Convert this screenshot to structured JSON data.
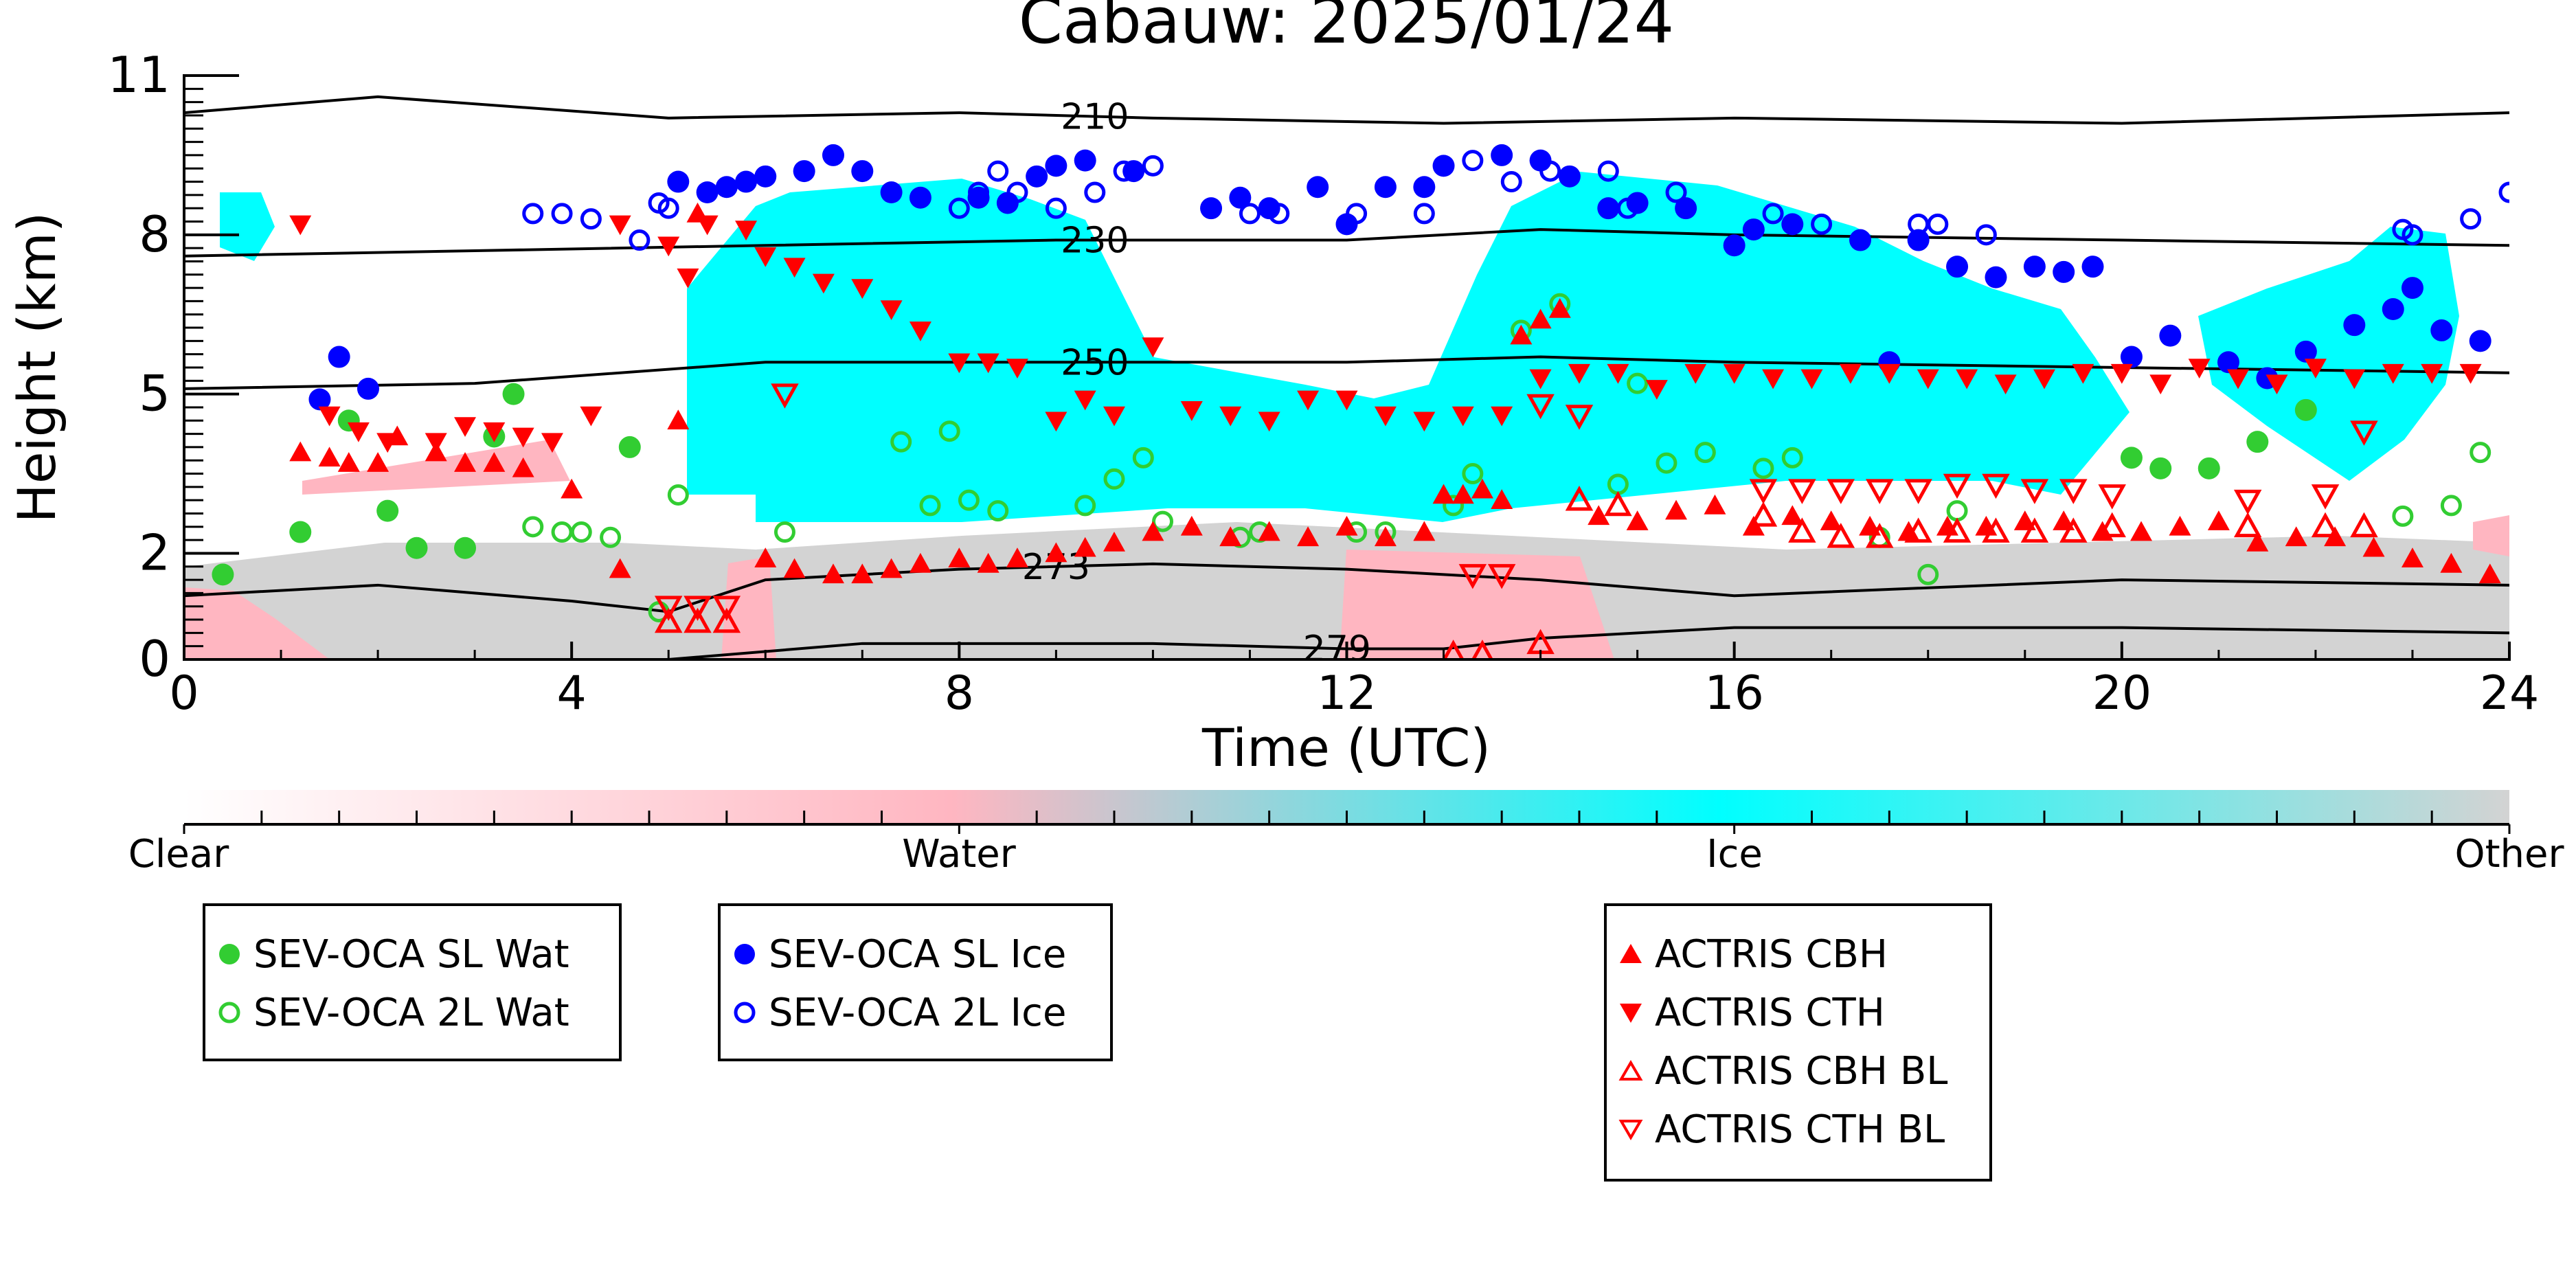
{
  "chart_data": {
    "type": "scatter",
    "title": "Cabauw: 2025/01/24",
    "xlabel": "Time (UTC)",
    "ylabel": "Height (km)",
    "xlim": [
      0,
      24
    ],
    "ylim": [
      0,
      11
    ],
    "xticks": [
      0,
      4,
      8,
      12,
      16,
      20,
      24
    ],
    "yticks": [
      0,
      2,
      5,
      8,
      11
    ],
    "ytick_labels": [
      "0",
      "2",
      "5",
      "8",
      "11"
    ],
    "colorbar": {
      "labels": [
        "Clear",
        "Water",
        "Ice",
        "Other"
      ],
      "colors": [
        "#ffffff",
        "#ffb6c1",
        "#00ffff",
        "#d3d3d3"
      ]
    },
    "isotherms": [
      {
        "label": "210",
        "label_x": 9.4,
        "points": [
          [
            0,
            10.3
          ],
          [
            2,
            10.6
          ],
          [
            5,
            10.2
          ],
          [
            8,
            10.3
          ],
          [
            10,
            10.2
          ],
          [
            13,
            10.1
          ],
          [
            16,
            10.2
          ],
          [
            20,
            10.1
          ],
          [
            24,
            10.3
          ]
        ]
      },
      {
        "label": "230",
        "label_x": 9.4,
        "points": [
          [
            0,
            7.6
          ],
          [
            3,
            7.7
          ],
          [
            6,
            7.8
          ],
          [
            9,
            7.9
          ],
          [
            12,
            7.9
          ],
          [
            14,
            8.1
          ],
          [
            16,
            8.0
          ],
          [
            20,
            7.9
          ],
          [
            24,
            7.8
          ]
        ]
      },
      {
        "label": "250",
        "label_x": 9.4,
        "points": [
          [
            0,
            5.1
          ],
          [
            3,
            5.2
          ],
          [
            6,
            5.6
          ],
          [
            9,
            5.6
          ],
          [
            12,
            5.6
          ],
          [
            14,
            5.7
          ],
          [
            16,
            5.6
          ],
          [
            20,
            5.5
          ],
          [
            24,
            5.4
          ]
        ]
      },
      {
        "label": "273",
        "label_x": 9.0,
        "points": [
          [
            0,
            1.2
          ],
          [
            2,
            1.4
          ],
          [
            4,
            1.1
          ],
          [
            5,
            0.9
          ],
          [
            6,
            1.5
          ],
          [
            8,
            1.7
          ],
          [
            10,
            1.8
          ],
          [
            12,
            1.7
          ],
          [
            14,
            1.5
          ],
          [
            16,
            1.2
          ],
          [
            20,
            1.5
          ],
          [
            24,
            1.4
          ]
        ]
      },
      {
        "label": "279",
        "label_x": 11.9,
        "points": [
          [
            5,
            0.0
          ],
          [
            7,
            0.3
          ],
          [
            10,
            0.3
          ],
          [
            12,
            0.2
          ],
          [
            13,
            0.2
          ],
          [
            14,
            0.4
          ],
          [
            16,
            0.6
          ],
          [
            20,
            0.6
          ],
          [
            24,
            0.5
          ]
        ]
      }
    ],
    "series": [
      {
        "name": "SEV-OCA SL Wat",
        "marker": "circle",
        "filled": true,
        "color": "#32cd32",
        "x": [
          0.4,
          1.2,
          1.7,
          2.1,
          2.4,
          2.9,
          3.2,
          3.4,
          4.6,
          20.1,
          20.4,
          20.9,
          21.4,
          21.9
        ],
        "y": [
          1.6,
          2.4,
          4.5,
          2.8,
          2.1,
          2.1,
          4.2,
          5.0,
          4.0,
          3.8,
          3.6,
          3.6,
          4.1,
          4.7
        ]
      },
      {
        "name": "SEV-OCA 2L Wat",
        "marker": "circle",
        "filled": false,
        "color": "#32cd32",
        "x": [
          3.6,
          3.9,
          4.1,
          4.4,
          4.9,
          5.1,
          6.2,
          7.4,
          7.7,
          7.9,
          8.1,
          8.4,
          9.3,
          9.6,
          9.9,
          10.1,
          10.9,
          11.1,
          12.1,
          12.4,
          13.1,
          13.3,
          13.8,
          14.2,
          14.8,
          15.0,
          15.3,
          15.7,
          16.3,
          16.6,
          17.5,
          18.0,
          18.3,
          22.9,
          23.4,
          23.7
        ],
        "y": [
          2.5,
          2.4,
          2.4,
          2.3,
          0.9,
          3.1,
          2.4,
          4.1,
          2.9,
          4.3,
          3.0,
          2.8,
          2.9,
          3.4,
          3.8,
          2.6,
          2.3,
          2.4,
          2.4,
          2.4,
          2.9,
          3.5,
          6.2,
          6.7,
          3.3,
          5.2,
          3.7,
          3.9,
          3.6,
          3.8,
          2.3,
          1.6,
          2.8,
          2.7,
          2.9,
          3.9
        ]
      },
      {
        "name": "SEV-OCA SL Ice",
        "marker": "circle",
        "filled": true,
        "color": "#0000ff",
        "x": [
          1.4,
          1.6,
          1.9,
          5.1,
          5.4,
          5.6,
          5.8,
          6.0,
          6.4,
          6.7,
          7.0,
          7.3,
          7.6,
          8.2,
          8.5,
          8.8,
          9.0,
          9.3,
          9.8,
          10.6,
          10.9,
          11.2,
          11.7,
          12.0,
          12.4,
          12.8,
          13.0,
          13.6,
          14.0,
          14.3,
          14.7,
          15.0,
          15.5,
          16.0,
          16.2,
          16.6,
          17.3,
          17.6,
          17.9,
          18.3,
          18.7,
          19.1,
          19.4,
          19.7,
          20.1,
          20.5,
          21.1,
          21.5,
          21.9,
          22.4,
          22.8,
          23.0,
          23.3,
          23.7
        ],
        "y": [
          4.9,
          5.7,
          5.1,
          9.0,
          8.8,
          8.9,
          9.0,
          9.1,
          9.2,
          9.5,
          9.2,
          8.8,
          8.7,
          8.7,
          8.6,
          9.1,
          9.3,
          9.4,
          9.2,
          8.5,
          8.7,
          8.5,
          8.9,
          8.2,
          8.9,
          8.9,
          9.3,
          9.5,
          9.4,
          9.1,
          8.5,
          8.6,
          8.5,
          7.8,
          8.1,
          8.2,
          7.9,
          5.6,
          7.9,
          7.4,
          7.2,
          7.4,
          7.3,
          7.4,
          5.7,
          6.1,
          5.6,
          5.3,
          5.8,
          6.3,
          6.6,
          7.0,
          6.2,
          6.0
        ],
        "note": "approximate"
      },
      {
        "name": "SEV-OCA 2L Ice",
        "marker": "circle",
        "filled": false,
        "color": "#0000ff",
        "x": [
          3.6,
          3.9,
          4.2,
          4.7,
          4.9,
          5.0,
          8.0,
          8.2,
          8.4,
          8.6,
          9.0,
          9.4,
          9.7,
          10.0,
          11.0,
          11.3,
          12.1,
          12.8,
          13.3,
          13.7,
          14.1,
          14.7,
          14.9,
          15.4,
          16.4,
          16.9,
          17.9,
          18.1,
          18.6,
          22.9,
          23.0,
          23.6,
          24.0
        ],
        "y": [
          8.4,
          8.4,
          8.3,
          7.9,
          8.6,
          8.5,
          8.5,
          8.8,
          9.2,
          8.8,
          8.5,
          8.8,
          9.2,
          9.3,
          8.4,
          8.4,
          8.4,
          8.4,
          9.4,
          9.0,
          9.2,
          9.2,
          8.5,
          8.8,
          8.4,
          8.2,
          8.2,
          8.2,
          8.0,
          8.1,
          8.0,
          8.3,
          8.8
        ],
        "note": "approximate"
      },
      {
        "name": "ACTRIS CBH",
        "marker": "triangle-up",
        "filled": true,
        "color": "#ff0000",
        "x": [
          1.2,
          1.5,
          1.7,
          2.0,
          2.2,
          2.6,
          2.9,
          3.2,
          3.5,
          4.0,
          4.5,
          5.1,
          5.3,
          6.0,
          6.3,
          6.7,
          7.0,
          7.3,
          7.6,
          8.0,
          8.3,
          8.6,
          9.0,
          9.3,
          9.6,
          10.0,
          10.4,
          10.8,
          11.2,
          11.6,
          12.0,
          12.4,
          12.8,
          13.0,
          13.2,
          13.4,
          13.6,
          13.8,
          14.0,
          14.2,
          14.6,
          15.0,
          15.4,
          15.8,
          16.2,
          16.6,
          17.0,
          17.4,
          17.8,
          18.2,
          18.6,
          19.0,
          19.4,
          19.8,
          20.2,
          20.6,
          21.0,
          21.4,
          21.8,
          22.2,
          22.6,
          23.0,
          23.4,
          23.8
        ],
        "y": [
          3.9,
          3.8,
          3.7,
          3.7,
          4.2,
          3.9,
          3.7,
          3.7,
          3.6,
          3.2,
          1.7,
          4.5,
          8.4,
          1.9,
          1.7,
          1.6,
          1.6,
          1.7,
          1.8,
          1.9,
          1.8,
          1.9,
          2.0,
          2.1,
          2.2,
          2.4,
          2.5,
          2.3,
          2.4,
          2.3,
          2.5,
          2.3,
          2.4,
          3.1,
          3.1,
          3.2,
          3.0,
          6.1,
          6.4,
          6.6,
          2.7,
          2.6,
          2.8,
          2.9,
          2.5,
          2.7,
          2.6,
          2.5,
          2.4,
          2.5,
          2.5,
          2.6,
          2.6,
          2.4,
          2.4,
          2.5,
          2.6,
          2.2,
          2.3,
          2.3,
          2.1,
          1.9,
          1.8,
          1.6
        ],
        "note": "approximate"
      },
      {
        "name": "ACTRIS CTH",
        "marker": "triangle-down",
        "filled": true,
        "color": "#ff0000",
        "x": [
          1.2,
          1.5,
          1.8,
          2.1,
          2.6,
          2.9,
          3.2,
          3.5,
          3.8,
          4.2,
          4.5,
          5.0,
          5.2,
          5.4,
          5.8,
          6.0,
          6.3,
          6.6,
          7.0,
          7.3,
          7.6,
          8.0,
          8.3,
          8.6,
          9.0,
          9.3,
          9.6,
          10.0,
          10.4,
          10.8,
          11.2,
          11.6,
          12.0,
          12.4,
          12.8,
          13.2,
          13.6,
          14.0,
          14.4,
          14.8,
          15.2,
          15.6,
          16.0,
          16.4,
          16.8,
          17.2,
          17.6,
          18.0,
          18.4,
          18.8,
          19.2,
          19.6,
          20.0,
          20.4,
          20.8,
          21.2,
          21.6,
          22.0,
          22.4,
          22.8,
          23.2,
          23.6
        ],
        "y": [
          8.2,
          4.6,
          4.3,
          4.1,
          4.1,
          4.4,
          4.3,
          4.2,
          4.1,
          4.6,
          8.2,
          7.8,
          7.2,
          8.2,
          8.1,
          7.6,
          7.4,
          7.1,
          7.0,
          6.6,
          6.2,
          5.6,
          5.6,
          5.5,
          4.5,
          4.9,
          4.6,
          5.9,
          4.7,
          4.6,
          4.5,
          4.9,
          4.9,
          4.6,
          4.5,
          4.6,
          4.6,
          5.3,
          5.4,
          5.4,
          5.1,
          5.4,
          5.4,
          5.3,
          5.3,
          5.4,
          5.4,
          5.3,
          5.3,
          5.2,
          5.3,
          5.4,
          5.4,
          5.2,
          5.5,
          5.3,
          5.2,
          5.5,
          5.3,
          5.4,
          5.4,
          5.4
        ],
        "note": "approximate"
      },
      {
        "name": "ACTRIS CBH BL",
        "marker": "triangle-up",
        "filled": false,
        "color": "#ff0000",
        "x": [
          5.0,
          5.3,
          5.6,
          13.1,
          13.4,
          14.0,
          14.4,
          14.8,
          16.3,
          16.7,
          17.1,
          17.5,
          17.9,
          18.3,
          18.7,
          19.1,
          19.5,
          19.9,
          21.3,
          22.1,
          22.5
        ],
        "y": [
          0.7,
          0.7,
          0.7,
          0.1,
          0.1,
          0.3,
          3.0,
          2.9,
          2.7,
          2.4,
          2.3,
          2.3,
          2.4,
          2.4,
          2.4,
          2.4,
          2.4,
          2.5,
          2.5,
          2.5,
          2.5
        ],
        "note": "approximate"
      },
      {
        "name": "ACTRIS CTH BL",
        "marker": "triangle-down",
        "filled": false,
        "color": "#ff0000",
        "x": [
          5.0,
          5.3,
          5.6,
          6.2,
          13.3,
          13.6,
          14.0,
          14.4,
          16.3,
          16.7,
          17.1,
          17.5,
          17.9,
          18.3,
          18.7,
          19.1,
          19.5,
          19.9,
          21.3,
          22.1,
          22.5
        ],
        "y": [
          1.0,
          1.0,
          1.0,
          5.0,
          1.6,
          1.6,
          4.8,
          4.6,
          3.2,
          3.2,
          3.2,
          3.2,
          3.2,
          3.3,
          3.3,
          3.2,
          3.2,
          3.1,
          3.0,
          3.1,
          4.3
        ],
        "note": "approximate"
      }
    ]
  },
  "legend_groups": [
    {
      "items": [
        "SEV-OCA SL Wat",
        "SEV-OCA 2L Wat"
      ]
    },
    {
      "items": [
        "SEV-OCA SL Ice",
        "SEV-OCA 2L Ice"
      ]
    },
    {
      "items": [
        "ACTRIS CBH",
        "ACTRIS CTH",
        "ACTRIS CBH BL",
        "ACTRIS CTH BL"
      ]
    }
  ]
}
